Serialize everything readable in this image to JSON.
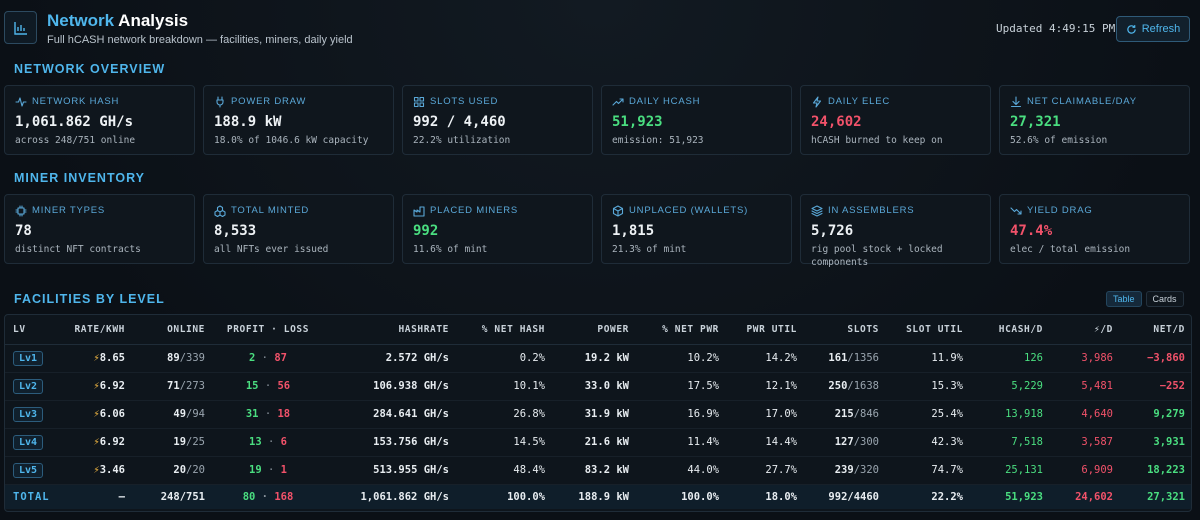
{
  "header": {
    "title_accent": "Network",
    "title_rest": " Analysis",
    "subtitle": "Full hCASH network breakdown — facilities, miners, daily yield",
    "updated": "Updated 4:49:15 PM",
    "refresh_label": "Refresh"
  },
  "sections": {
    "overview": "NETWORK OVERVIEW",
    "inventory": "MINER INVENTORY",
    "facilities": "FACILITIES BY LEVEL"
  },
  "overview_cards": [
    {
      "icon": "pulse-icon",
      "label": "NETWORK HASH",
      "value": "1,061.862 GH/s",
      "sub": "across 248/751 online",
      "color": "default"
    },
    {
      "icon": "plug-icon",
      "label": "POWER DRAW",
      "value": "188.9 kW",
      "sub": "18.0% of 1046.6 kW capacity",
      "color": "default"
    },
    {
      "icon": "grid-icon",
      "label": "SLOTS USED",
      "value": "992 / 4,460",
      "sub": "22.2% utilization",
      "color": "default"
    },
    {
      "icon": "trending-up-icon",
      "label": "DAILY HCASH",
      "value": "51,923",
      "sub": "emission: 51,923",
      "color": "green"
    },
    {
      "icon": "lightning-icon",
      "label": "DAILY ELEC",
      "value": "24,602",
      "sub": "hCASH burned to keep on",
      "color": "red"
    },
    {
      "icon": "download-icon",
      "label": "NET CLAIMABLE/DAY",
      "value": "27,321",
      "sub": "52.6% of emission",
      "color": "green"
    }
  ],
  "inventory_cards": [
    {
      "icon": "chip-icon",
      "label": "MINER TYPES",
      "value": "78",
      "sub": "distinct NFT contracts",
      "color": "default"
    },
    {
      "icon": "boxes-icon",
      "label": "TOTAL MINTED",
      "value": "8,533",
      "sub": "all NFTs ever issued",
      "color": "default"
    },
    {
      "icon": "factory-icon",
      "label": "PLACED MINERS",
      "value": "992",
      "sub": "11.6% of mint",
      "color": "green"
    },
    {
      "icon": "cube-icon",
      "label": "UNPLACED (WALLETS)",
      "value": "1,815",
      "sub": "21.3% of mint",
      "color": "default"
    },
    {
      "icon": "layers-icon",
      "label": "IN ASSEMBLERS",
      "value": "5,726",
      "sub": "rig pool stock + locked components",
      "color": "default"
    },
    {
      "icon": "trending-down-icon",
      "label": "YIELD DRAG",
      "value": "47.4%",
      "sub": "elec / total emission",
      "color": "red"
    }
  ],
  "view_toggle": {
    "table": "Table",
    "cards": "Cards"
  },
  "table": {
    "columns": [
      "LV",
      "RATE/KWH",
      "ONLINE",
      "PROFIT · LOSS",
      "HASHRATE",
      "% NET HASH",
      "POWER",
      "% NET PWR",
      "PWR UTIL",
      "SLOTS",
      "SLOT UTIL",
      "HCASH/D",
      "⚡/D",
      "NET/D"
    ],
    "rows": [
      {
        "lv": "Lv1",
        "rate": "8.65",
        "online": "89",
        "total": "/339",
        "profit": "2",
        "loss": "87",
        "hash": "2.572 GH/s",
        "nethash": "0.2%",
        "power": "19.2 kW",
        "netpwr": "10.2%",
        "pwrutil": "14.2%",
        "slots": "161",
        "slotstotal": "/1356",
        "slotutil": "11.9%",
        "hcash": "126",
        "elec": "3,986",
        "net": "−3,860",
        "net_color": "red"
      },
      {
        "lv": "Lv2",
        "rate": "6.92",
        "online": "71",
        "total": "/273",
        "profit": "15",
        "loss": "56",
        "hash": "106.938 GH/s",
        "nethash": "10.1%",
        "power": "33.0 kW",
        "netpwr": "17.5%",
        "pwrutil": "12.1%",
        "slots": "250",
        "slotstotal": "/1638",
        "slotutil": "15.3%",
        "hcash": "5,229",
        "elec": "5,481",
        "net": "−252",
        "net_color": "red"
      },
      {
        "lv": "Lv3",
        "rate": "6.06",
        "online": "49",
        "total": "/94",
        "profit": "31",
        "loss": "18",
        "hash": "284.641 GH/s",
        "nethash": "26.8%",
        "power": "31.9 kW",
        "netpwr": "16.9%",
        "pwrutil": "17.0%",
        "slots": "215",
        "slotstotal": "/846",
        "slotutil": "25.4%",
        "hcash": "13,918",
        "elec": "4,640",
        "net": "9,279",
        "net_color": "green"
      },
      {
        "lv": "Lv4",
        "rate": "6.92",
        "online": "19",
        "total": "/25",
        "profit": "13",
        "loss": "6",
        "hash": "153.756 GH/s",
        "nethash": "14.5%",
        "power": "21.6 kW",
        "netpwr": "11.4%",
        "pwrutil": "14.4%",
        "slots": "127",
        "slotstotal": "/300",
        "slotutil": "42.3%",
        "hcash": "7,518",
        "elec": "3,587",
        "net": "3,931",
        "net_color": "green"
      },
      {
        "lv": "Lv5",
        "rate": "3.46",
        "online": "20",
        "total": "/20",
        "profit": "19",
        "loss": "1",
        "hash": "513.955 GH/s",
        "nethash": "48.4%",
        "power": "83.2 kW",
        "netpwr": "44.0%",
        "pwrutil": "27.7%",
        "slots": "239",
        "slotstotal": "/320",
        "slotutil": "74.7%",
        "hcash": "25,131",
        "elec": "6,909",
        "net": "18,223",
        "net_color": "green"
      }
    ],
    "total": {
      "label": "TOTAL",
      "rate": "—",
      "online": "248/751",
      "profit": "80",
      "loss": "168",
      "hash": "1,061.862 GH/s",
      "nethash": "100.0%",
      "power": "188.9 kW",
      "netpwr": "100.0%",
      "pwrutil": "18.0%",
      "slots": "992/4460",
      "slotutil": "22.2%",
      "hcash": "51,923",
      "elec": "24,602",
      "net": "27,321"
    }
  },
  "colors": {
    "accent": "#4fb6ec",
    "green": "#4ade80",
    "red": "#f2526a",
    "bolt": "#f5b942"
  }
}
